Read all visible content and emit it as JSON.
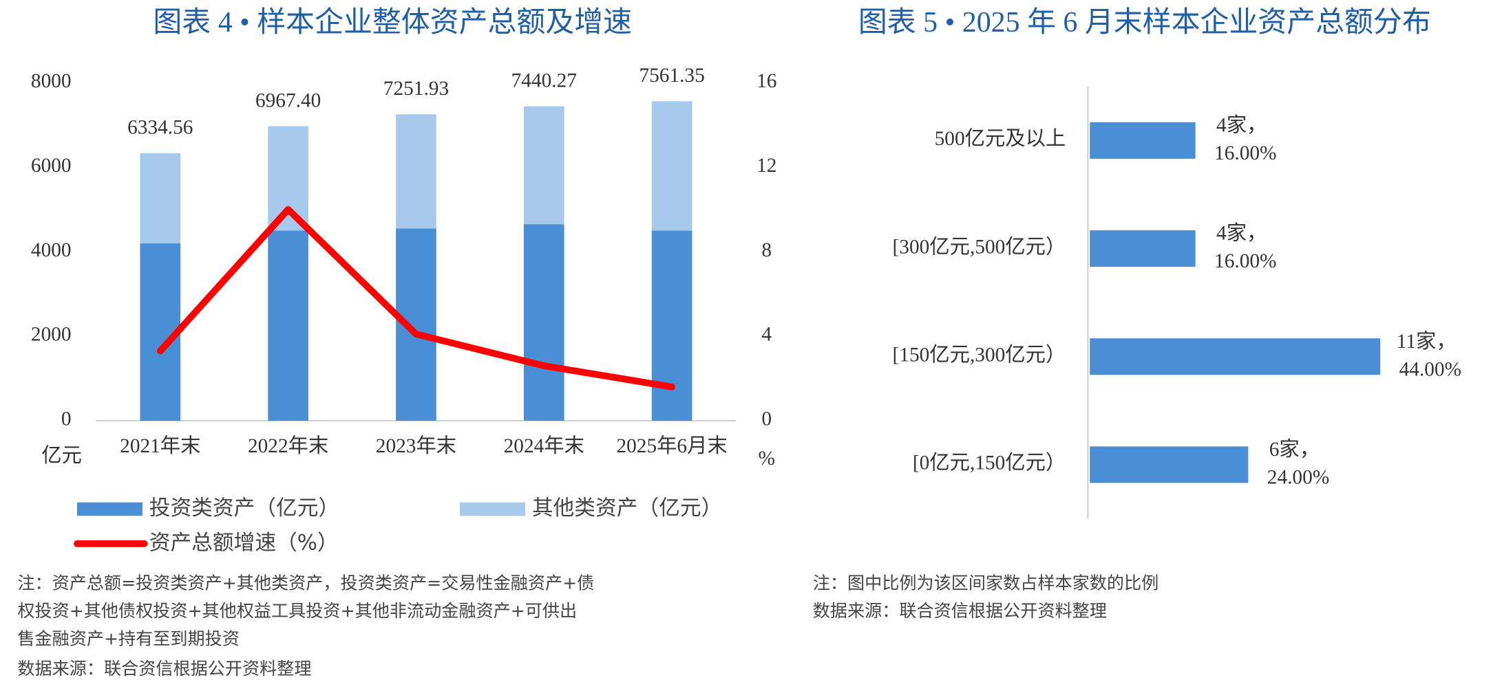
{
  "chart_data": [
    {
      "type": "stacked-bar-line",
      "title": "图表 4 • 样本企业整体资产总额及增速",
      "categories": [
        "2021年末",
        "2022年末",
        "2023年末",
        "2024年末",
        "2025年6月末"
      ],
      "series": [
        {
          "name": "投资类资产（亿元）",
          "color": "#4a8fd6",
          "values": [
            4200,
            4500,
            4550,
            4650,
            4500
          ]
        },
        {
          "name": "其他类资产（亿元）",
          "color": "#a7c9eb",
          "values": [
            2130,
            2470,
            2700,
            2790,
            3060
          ]
        },
        {
          "name": "资产总额增速（%）",
          "color": "#ff0000",
          "axis": "y2",
          "values": [
            3.3,
            10.0,
            4.1,
            2.6,
            1.6
          ]
        }
      ],
      "totals": {
        "values": [
          6334.56,
          6967.4,
          7251.93,
          7440.27,
          7561.35
        ],
        "value_labels": [
          "6334.56",
          "6967.40",
          "7251.93",
          "7440.27",
          "7561.35"
        ]
      },
      "ylim": [
        0,
        8000
      ],
      "yticks": [
        0,
        2000,
        4000,
        6000,
        8000
      ],
      "y_label": "亿元",
      "y2lim": [
        0,
        16
      ],
      "y2ticks": [
        0,
        4,
        8,
        12,
        16
      ],
      "y2_label": "%",
      "note_lines": [
        "注：资产总额=投资类资产+其他类资产，投资类资产=交易性金融资产+债",
        "权投资+其他债权投资+其他权益工具投资+其他非流动金融资产+可供出",
        "售金融资产+持有至到期投资"
      ],
      "source": "数据来源：联合资信根据公开资料整理"
    },
    {
      "type": "hbar",
      "title": "图表 5 • 2025 年 6 月末样本企业资产总额分布",
      "categories": [
        "500亿元及以上",
        "[300亿元,500亿元）",
        "[150亿元,300亿元）",
        "[0亿元,150亿元）"
      ],
      "values": [
        4,
        4,
        11,
        6
      ],
      "value_labels": [
        "4家，",
        "4家，",
        "11家，",
        "6家，"
      ],
      "shares": [
        16,
        16,
        44,
        24
      ],
      "share_labels": [
        "16.00%",
        "16.00%",
        "44.00%",
        "24.00%"
      ],
      "color": "#4a8fd6",
      "note_lines": [
        "注：图中比例为该区间家数占样本家数的比例"
      ],
      "source": "数据来源：联合资信根据公开资料整理"
    }
  ]
}
